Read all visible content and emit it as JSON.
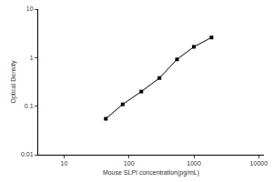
{
  "chart_data": {
    "type": "line",
    "x_label": "Mouse SLPI concentration(pg/mL)",
    "y_label": "Optical Density",
    "x": [
      44,
      80,
      155,
      295,
      550,
      1000,
      1870
    ],
    "values": [
      0.055,
      0.109,
      0.2,
      0.38,
      0.92,
      1.67,
      2.6
    ],
    "color": "#000000",
    "marker": "square",
    "log": true,
    "grid": false,
    "xlim": [
      4,
      12000
    ],
    "xticks": [
      10,
      100,
      1000,
      10000
    ],
    "ylim": [
      0.01,
      10
    ],
    "yticks": [
      0.01,
      0.1,
      1,
      10
    ]
  }
}
